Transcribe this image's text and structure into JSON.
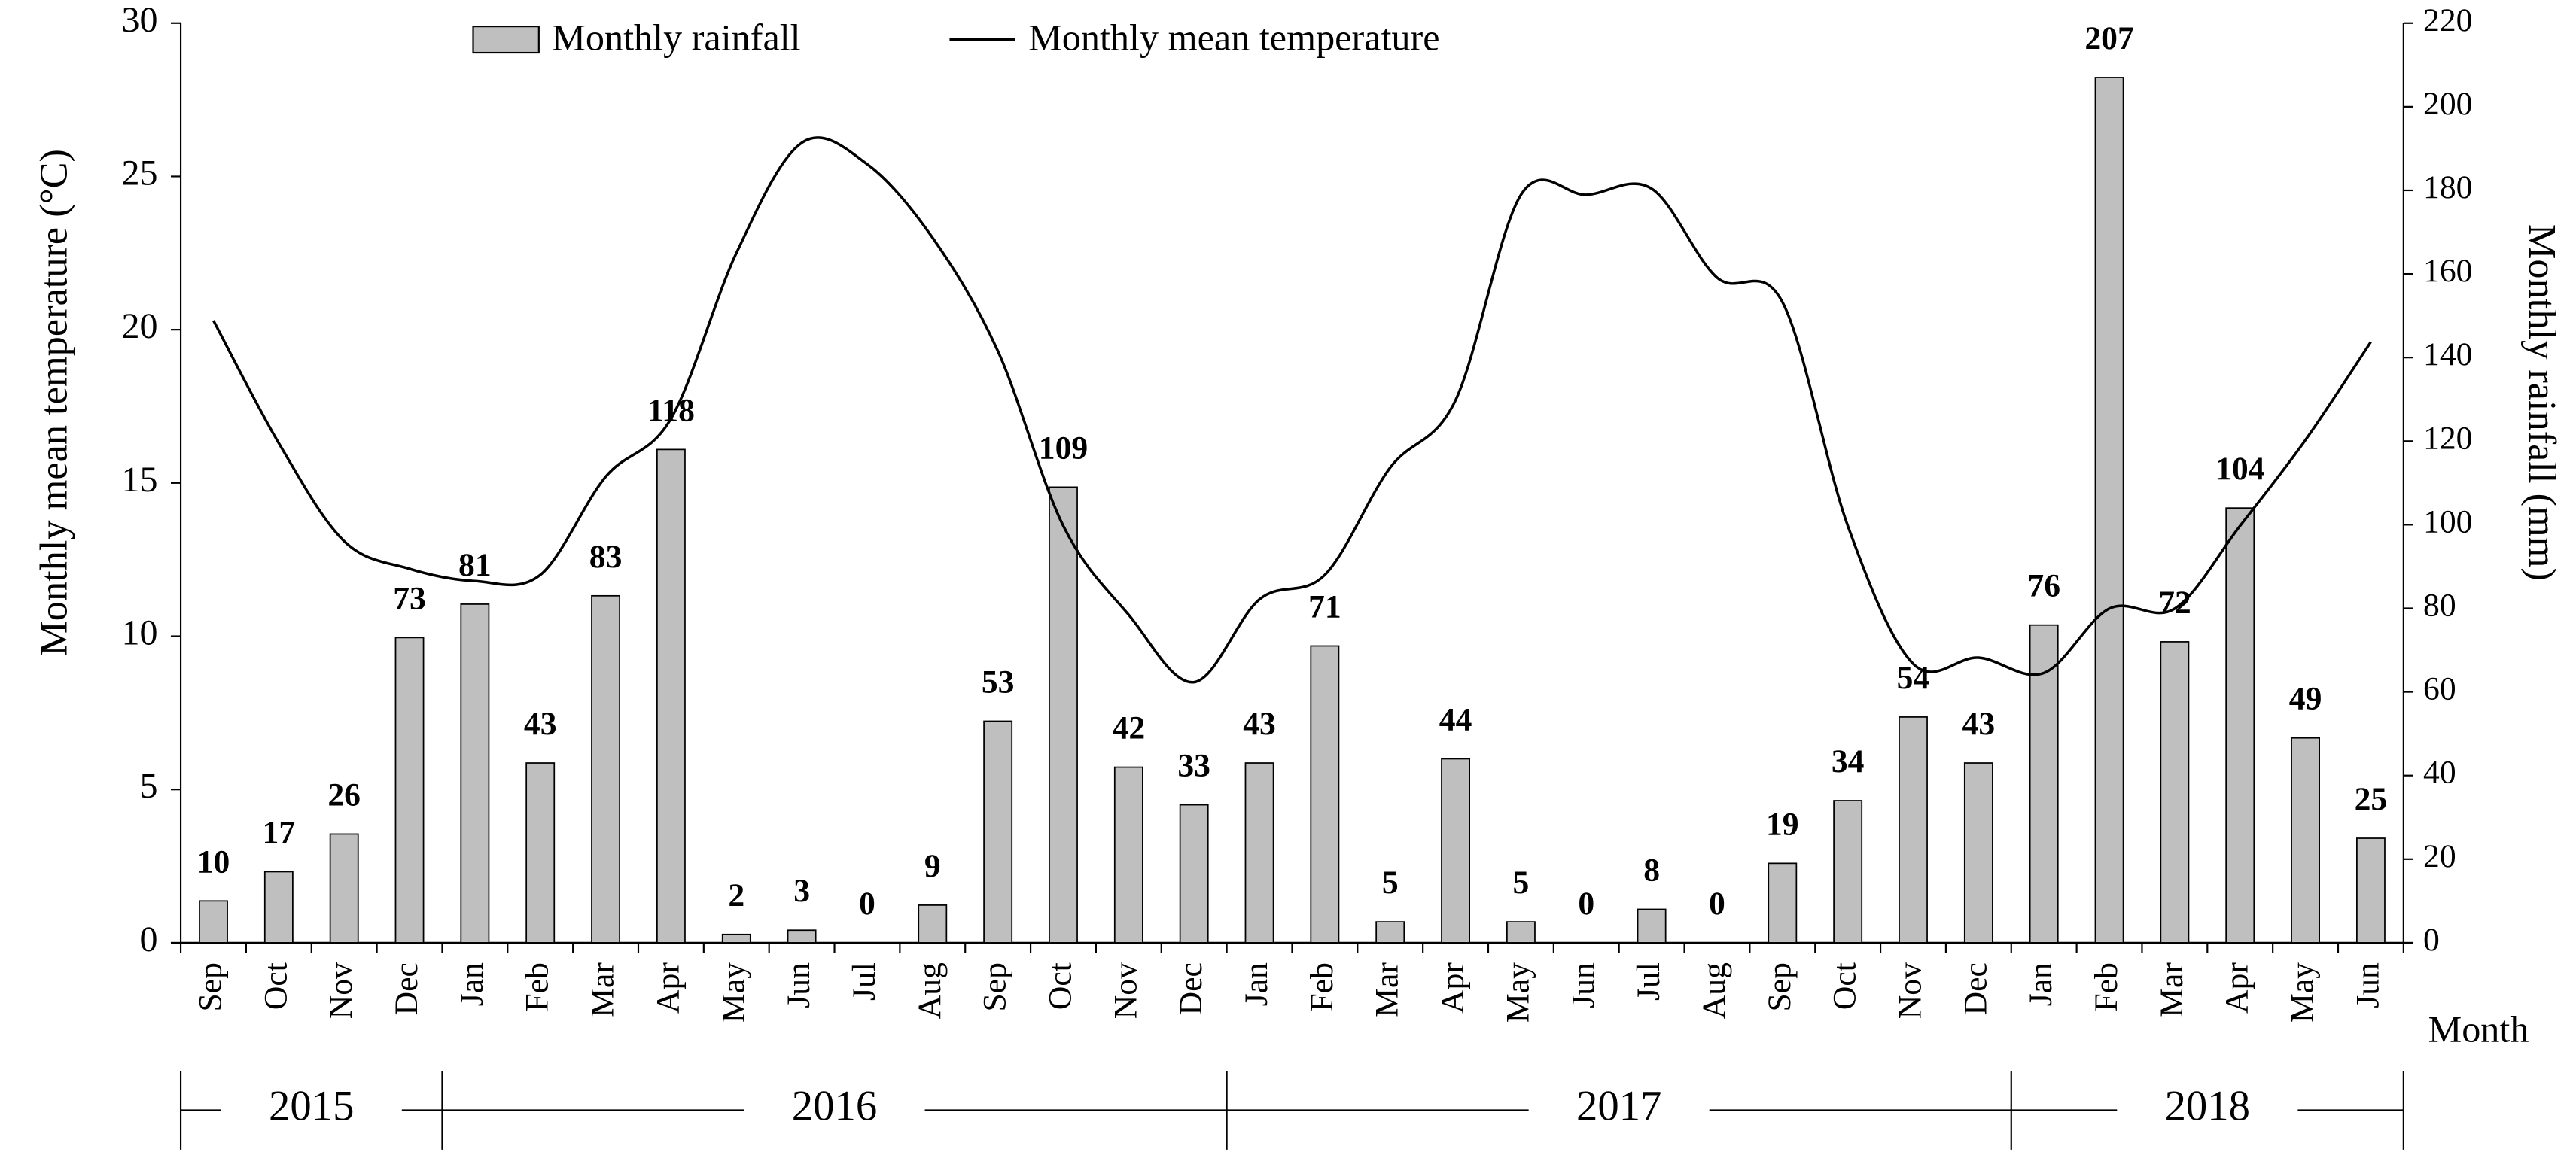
{
  "chart_data": {
    "type": "bar_line",
    "categories": [
      "Sep",
      "Oct",
      "Nov",
      "Dec",
      "Jan",
      "Feb",
      "Mar",
      "Apr",
      "May",
      "Jun",
      "Jul",
      "Aug",
      "Sep",
      "Oct",
      "Nov",
      "Dec",
      "Jan",
      "Feb",
      "Mar",
      "Apr",
      "May",
      "Jun",
      "Jul",
      "Aug",
      "Sep",
      "Oct",
      "Nov",
      "Dec",
      "Jan",
      "Feb",
      "Mar",
      "Apr",
      "May",
      "Jun"
    ],
    "years": [
      "2015",
      "2016",
      "2017",
      "2018"
    ],
    "xlabel": "Month",
    "ylabel": "Monthly mean temperature (°C)",
    "y2label": "Monthly rainfall (mm)",
    "series": [
      {
        "name": "Monthly rainfall",
        "type": "bar",
        "axis": "y2",
        "color": "#bfbfbf",
        "values": [
          10,
          17,
          26,
          73,
          81,
          43,
          83,
          118,
          2,
          3,
          0,
          9,
          53,
          109,
          42,
          33,
          43,
          71,
          5,
          44,
          5,
          0,
          8,
          0,
          19,
          34,
          54,
          43,
          76,
          207,
          72,
          104,
          49,
          25
        ]
      },
      {
        "name": "Monthly mean temperature",
        "type": "line",
        "axis": "y",
        "color": "#000000",
        "values": [
          20.3,
          16.3,
          13.1,
          12.2,
          11.8,
          12.0,
          15.2,
          17.1,
          22.5,
          26.1,
          25.4,
          23.0,
          19.3,
          13.6,
          10.7,
          8.5,
          11.2,
          12.0,
          15.5,
          17.7,
          24.4,
          24.4,
          24.6,
          21.7,
          20.9,
          13.6,
          9.1,
          9.3,
          8.8,
          10.9,
          10.9,
          13.6,
          16.4,
          19.6
        ]
      }
    ],
    "ylim": [
      0,
      30
    ],
    "yticks": [
      0,
      5,
      10,
      15,
      20,
      25,
      30
    ],
    "y2lim": [
      0,
      220
    ],
    "y2ticks": [
      0,
      20,
      40,
      60,
      80,
      100,
      120,
      140,
      160,
      180,
      200,
      220
    ],
    "legend": "top"
  }
}
